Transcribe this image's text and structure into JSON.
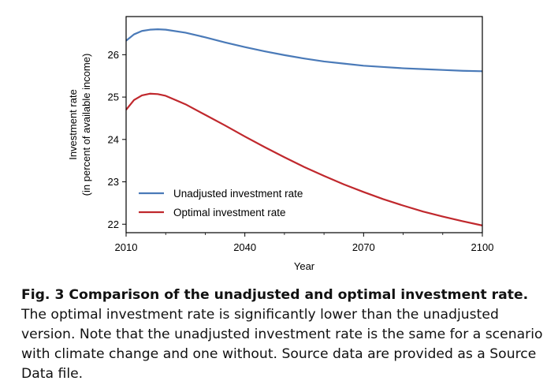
{
  "chart_data": {
    "type": "line",
    "xlabel": "Year",
    "ylabel_line1": "Investment rate",
    "ylabel_line2": "(in percent of available income)",
    "xlim": [
      2010,
      2100
    ],
    "ylim": [
      21.8,
      26.9
    ],
    "xticks": [
      2010,
      2040,
      2070,
      2100
    ],
    "xticks_minor": [
      2020,
      2030,
      2050,
      2060,
      2080,
      2090
    ],
    "yticks": [
      22,
      23,
      24,
      25,
      26
    ],
    "grid": false,
    "legend_position": "lower-left",
    "series": [
      {
        "name": "Unadjusted investment rate",
        "color": "#4a7ab8",
        "x": [
          2010,
          2012,
          2014,
          2016,
          2018,
          2020,
          2025,
          2030,
          2035,
          2040,
          2045,
          2050,
          2055,
          2060,
          2065,
          2070,
          2075,
          2080,
          2085,
          2090,
          2095,
          2100
        ],
        "y": [
          26.33,
          26.48,
          26.56,
          26.59,
          26.6,
          26.59,
          26.52,
          26.41,
          26.29,
          26.18,
          26.08,
          25.99,
          25.91,
          25.84,
          25.79,
          25.74,
          25.71,
          25.68,
          25.66,
          25.64,
          25.62,
          25.61
        ]
      },
      {
        "name": "Optimal investment rate",
        "color": "#c0282d",
        "x": [
          2010,
          2012,
          2014,
          2016,
          2018,
          2020,
          2025,
          2030,
          2035,
          2040,
          2045,
          2050,
          2055,
          2060,
          2065,
          2070,
          2075,
          2080,
          2085,
          2090,
          2095,
          2100
        ],
        "y": [
          24.7,
          24.93,
          25.04,
          25.08,
          25.07,
          25.03,
          24.83,
          24.58,
          24.33,
          24.07,
          23.82,
          23.58,
          23.35,
          23.14,
          22.94,
          22.76,
          22.59,
          22.44,
          22.3,
          22.18,
          22.07,
          21.97
        ]
      }
    ]
  },
  "caption": {
    "bold": "Fig. 3 Comparison of the unadjusted and optimal investment rate.",
    "text": " The optimal investment rate is significantly lower than the unadjusted version. Note that the unadjusted investment rate is the same for a scenario with climate change and one without. Source data are provided as a Source Data file."
  }
}
